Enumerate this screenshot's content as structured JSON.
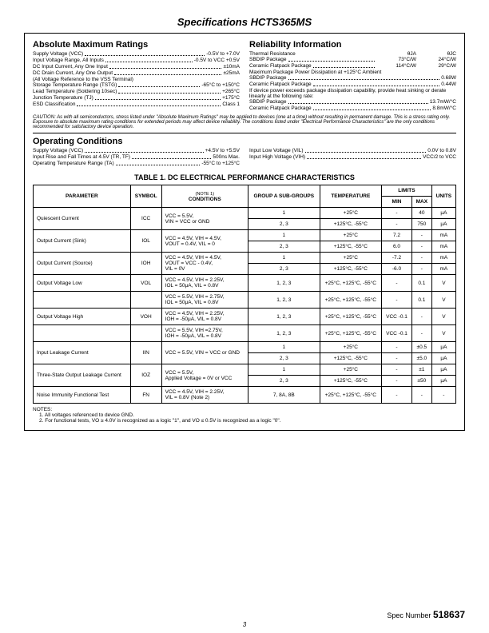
{
  "title": "Specifications HCTS365MS",
  "abs_heading": "Absolute Maximum Ratings",
  "reli_heading": "Reliability Information",
  "abs_lines": [
    {
      "label": "Supply Voltage (VCC)",
      "val": "-0.5V to +7.0V"
    },
    {
      "label": "Input Voltage Range, All Inputs",
      "val": "-0.5V to VCC +0.5V"
    },
    {
      "label": "DC Input Current, Any One Input",
      "val": "±10mA"
    },
    {
      "label": "DC Drain Current, Any One Output",
      "val": "±25mA"
    },
    {
      "label": "(All Voltage Reference to the VSS Terminal)",
      "val": ""
    },
    {
      "label": "Storage Temperature Range (TSTG)",
      "val": "-65°C to +150°C"
    },
    {
      "label": "Lead Temperature (Soldering 10sec)",
      "val": "+265°C"
    },
    {
      "label": "Junction Temperature (TJ)",
      "val": "+175°C"
    },
    {
      "label": "ESD Classification",
      "val": "Class 1"
    }
  ],
  "reli_header_cols": [
    "θJA",
    "θJC"
  ],
  "reli_lines1": [
    {
      "label": "Thermal Resistance",
      "v1": "",
      "v2": ""
    },
    {
      "label": "   SBDIP Package",
      "v1": "73°C/W",
      "v2": "24°C/W"
    },
    {
      "label": "   Ceramic Flatpack Package",
      "v1": "114°C/W",
      "v2": "29°C/W"
    }
  ],
  "reli_label2": "Maximum Package Power Dissipation at +125°C Ambient",
  "reli_lines2": [
    {
      "label": "   SBDIP Package",
      "val": "0.68W"
    },
    {
      "label": "   Ceramic Flatpack Package",
      "val": "0.44W"
    }
  ],
  "reli_label3": "If device power exceeds package dissipation capability, provide heat sinking or derate linearly at the following rate:",
  "reli_lines3": [
    {
      "label": "   SBDIP Package",
      "val": "13.7mW/°C"
    },
    {
      "label": "   Ceramic Flatpack Package",
      "val": "8.8mW/°C"
    }
  ],
  "caution": "CAUTION: As with all semiconductors, stress listed under \"Absolute Maximum Ratings\" may be applied to devices (one at a time) without resulting in permanent damage. This is a stress rating only. Exposure to absolute maximum rating conditions for extended periods may affect device reliability. The conditions listed under \"Electrical Performance Characteristics\" are the only conditions recommended for satisfactory device operation.",
  "op_heading": "Operating Conditions",
  "op_left": [
    {
      "label": "Supply Voltage (VCC)",
      "val": "+4.5V to +5.5V"
    },
    {
      "label": "Input Rise and Fall Times at 4.5V (TR, TF)",
      "val": "500ns Max."
    },
    {
      "label": "Operating Temperature Range (TA)",
      "val": "-55°C to +125°C"
    }
  ],
  "op_right": [
    {
      "label": "Input Low Voltage (VIL)",
      "val": "0.0V to 0.8V"
    },
    {
      "label": "Input High Voltage (VIH)",
      "val": "VCC/2 to VCC"
    }
  ],
  "table_title": "TABLE 1.  DC ELECTRICAL PERFORMANCE CHARACTERISTICS",
  "headers": {
    "parameter": "PARAMETER",
    "symbol": "SYMBOL",
    "conditions_note": "(NOTE 1)",
    "conditions": "CONDITIONS",
    "group": "GROUP A SUB-GROUPS",
    "temp": "TEMPERATURE",
    "limits": "LIMITS",
    "min": "MIN",
    "max": "MAX",
    "units": "UNITS"
  },
  "rows": [
    {
      "param": "Quiescent Current",
      "sym": "ICC",
      "cond": "VCC = 5.5V,\nVIN = VCC or GND",
      "rs": 2,
      "sub": [
        {
          "g": "1",
          "t": "+25°C",
          "min": "-",
          "max": "40",
          "u": "μA"
        },
        {
          "g": "2, 3",
          "t": "+125°C, -55°C",
          "min": "-",
          "max": "750",
          "u": "μA"
        }
      ]
    },
    {
      "param": "Output Current (Sink)",
      "sym": "IOL",
      "cond": "VCC = 4.5V, VIH = 4.5V,\nVOUT = 0.4V, VIL = 0",
      "rs": 2,
      "sub": [
        {
          "g": "1",
          "t": "+25°C",
          "min": "7.2",
          "max": "-",
          "u": "mA"
        },
        {
          "g": "2, 3",
          "t": "+125°C, -55°C",
          "min": "6.0",
          "max": "-",
          "u": "mA"
        }
      ]
    },
    {
      "param": "Output Current (Source)",
      "sym": "IOH",
      "cond": "VCC = 4.5V, VIH = 4.5V,\nVOUT = VCC - 0.4V,\nVIL = 0V",
      "rs": 2,
      "sub": [
        {
          "g": "1",
          "t": "+25°C",
          "min": "-7.2",
          "max": "-",
          "u": "mA"
        },
        {
          "g": "2, 3",
          "t": "+125°C, -55°C",
          "min": "-6.0",
          "max": "-",
          "u": "mA"
        }
      ]
    },
    {
      "param": "Output Voltage Low",
      "sym": "VOL",
      "cond": "VCC = 4.5V, VIH = 2.25V,\nIOL = 50μA, VIL = 0.8V",
      "rs": 1,
      "sub": [
        {
          "g": "1, 2, 3",
          "t": "+25°C, +125°C, -55°C",
          "min": "-",
          "max": "0.1",
          "u": "V"
        }
      ]
    },
    {
      "param": "",
      "sym": "",
      "cond": "VCC = 5.5V, VIH = 2.75V,\nIOL = 50μA, VIL = 0.8V",
      "rs": 1,
      "sub": [
        {
          "g": "1, 2, 3",
          "t": "+25°C, +125°C, -55°C",
          "min": "-",
          "max": "0.1",
          "u": "V"
        }
      ]
    },
    {
      "param": "Output Voltage High",
      "sym": "VOH",
      "cond": "VCC = 4.5V, VIH = 2.25V,\nIOH = -50μA, VIL = 0.8V",
      "rs": 1,
      "sub": [
        {
          "g": "1, 2, 3",
          "t": "+25°C, +125°C, -55°C",
          "min": "VCC -0.1",
          "max": "-",
          "u": "V"
        }
      ]
    },
    {
      "param": "",
      "sym": "",
      "cond": "VCC = 5.5V, VIH =2.75V,\nIOH = -50μA, VIL = 0.8V",
      "rs": 1,
      "sub": [
        {
          "g": "1, 2, 3",
          "t": "+25°C, +125°C, -55°C",
          "min": "VCC -0.1",
          "max": "-",
          "u": "V"
        }
      ]
    },
    {
      "param": "Input Leakage Current",
      "sym": "IIN",
      "cond": "VCC = 5.5V, VIN = VCC or GND",
      "rs": 2,
      "sub": [
        {
          "g": "1",
          "t": "+25°C",
          "min": "-",
          "max": "±0.5",
          "u": "μA"
        },
        {
          "g": "2, 3",
          "t": "+125°C, -55°C",
          "min": "-",
          "max": "±5.0",
          "u": "μA"
        }
      ]
    },
    {
      "param": "Three-State Output Leakage Current",
      "sym": "IOZ",
      "cond": "VCC = 5.5V,\nApplied Voltage = 0V or VCC",
      "rs": 2,
      "sub": [
        {
          "g": "1",
          "t": "+25°C",
          "min": "-",
          "max": "±1",
          "u": "μA"
        },
        {
          "g": "2, 3",
          "t": "+125°C, -55°C",
          "min": "-",
          "max": "±50",
          "u": "μA"
        }
      ]
    },
    {
      "param": "Noise Immunity Functional Test",
      "sym": "FN",
      "cond": "VCC = 4.5V, VIH = 2.25V,\nVIL = 0.8V (Note 2)",
      "rs": 1,
      "sub": [
        {
          "g": "7, 8A, 8B",
          "t": "+25°C, +125°C, -55°C",
          "min": "-",
          "max": "-",
          "u": "-"
        }
      ]
    }
  ],
  "notes_heading": "NOTES:",
  "notes": [
    "1.  All voltages referenced to device GND.",
    "2.  For functional tests, VO ≥ 4.0V is recognized as a logic \"1\", and VO ≤ 0.5V is recognized as a logic \"0\"."
  ],
  "spec_label": "Spec Number",
  "spec_num": "518637",
  "page_num": "3"
}
